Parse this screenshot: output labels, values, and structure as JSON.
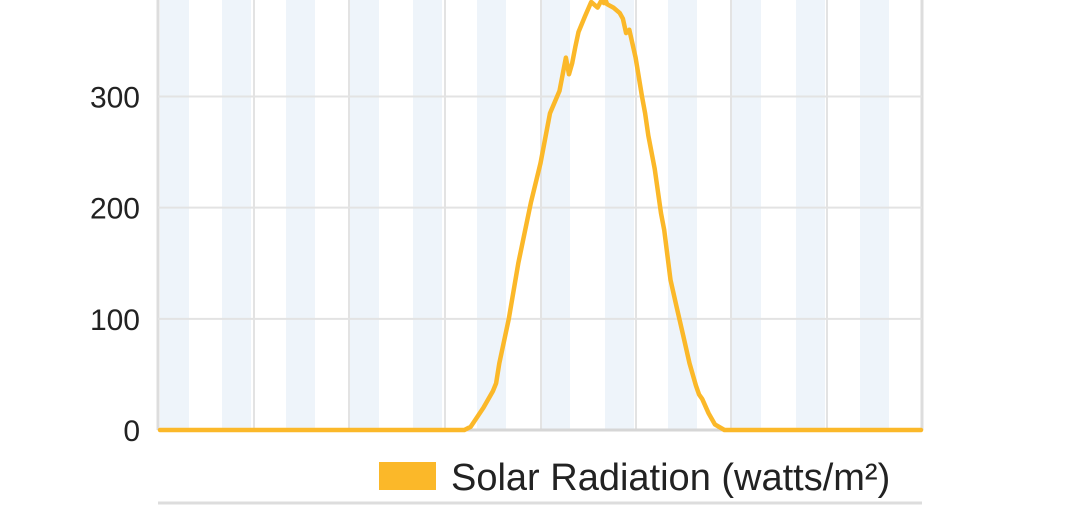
{
  "chart_data": {
    "type": "line",
    "ylim": [
      0,
      385
    ],
    "y_ticks": [
      "0",
      "100",
      "200",
      "300"
    ],
    "grid": true,
    "alternating_column_bands": true,
    "legend": {
      "position": "bottom-right"
    },
    "series": [
      {
        "name": "Solar Radiation (watts/m²)",
        "color": "#fbb829",
        "x": [
          0,
          24,
          48,
          72,
          96,
          120,
          144,
          168,
          192,
          196,
          204,
          210,
          212,
          214,
          220,
          226,
          234,
          240,
          246,
          252,
          256,
          258,
          260,
          262,
          264,
          268,
          272,
          276,
          279,
          280,
          281,
          282,
          286,
          290,
          292,
          294,
          296,
          300,
          304,
          306,
          308,
          312,
          316,
          318,
          322,
          326,
          330,
          334,
          338,
          340,
          342,
          346,
          350,
          356,
          362,
          366,
          372,
          378,
          384,
          408,
          432,
          456,
          480
        ],
        "y": [
          0,
          0,
          0,
          0,
          0,
          0,
          0,
          0,
          0,
          3,
          20,
          35,
          42,
          60,
          100,
          150,
          205,
          240,
          285,
          305,
          335,
          320,
          330,
          345,
          358,
          372,
          385,
          380,
          388,
          384,
          387,
          383,
          380,
          375,
          370,
          357,
          360,
          335,
          300,
          285,
          265,
          235,
          195,
          180,
          135,
          110,
          85,
          60,
          40,
          32,
          28,
          15,
          5,
          0,
          0,
          0,
          0,
          0,
          0,
          0,
          0,
          0,
          0
        ]
      }
    ]
  }
}
